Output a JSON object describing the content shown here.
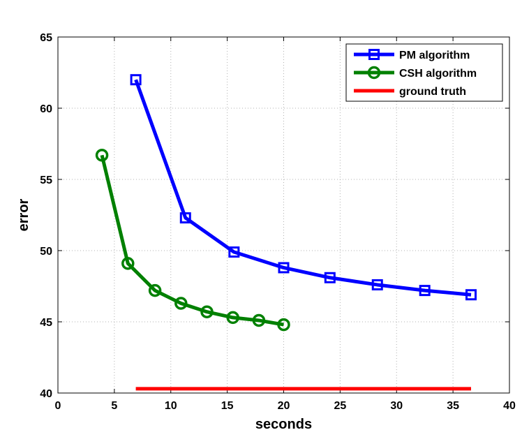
{
  "chart_data": {
    "type": "line",
    "title": "",
    "xlabel": "seconds",
    "ylabel": "error",
    "xlim": [
      0,
      40
    ],
    "ylim": [
      40,
      65
    ],
    "xticks": [
      0,
      5,
      10,
      15,
      20,
      25,
      30,
      35,
      40
    ],
    "yticks": [
      40,
      45,
      50,
      55,
      60,
      65
    ],
    "grid": true,
    "legend_position": "top-right",
    "series": [
      {
        "name": "PM algorithm",
        "color": "#0000ff",
        "marker": "square",
        "x": [
          6.9,
          11.3,
          15.6,
          20.0,
          24.1,
          28.3,
          32.5,
          36.6
        ],
        "y": [
          62.0,
          52.3,
          49.9,
          48.8,
          48.1,
          47.6,
          47.2,
          46.9
        ]
      },
      {
        "name": "CSH algorithm",
        "color": "#008000",
        "marker": "circle",
        "x": [
          3.9,
          6.2,
          8.6,
          10.9,
          13.2,
          15.5,
          17.8,
          20.0
        ],
        "y": [
          56.7,
          49.1,
          47.2,
          46.3,
          45.7,
          45.3,
          45.1,
          44.8
        ]
      },
      {
        "name": "ground truth",
        "color": "#ff0000",
        "marker": "none",
        "x": [
          6.9,
          36.6
        ],
        "y": [
          40.3,
          40.3
        ]
      }
    ]
  }
}
